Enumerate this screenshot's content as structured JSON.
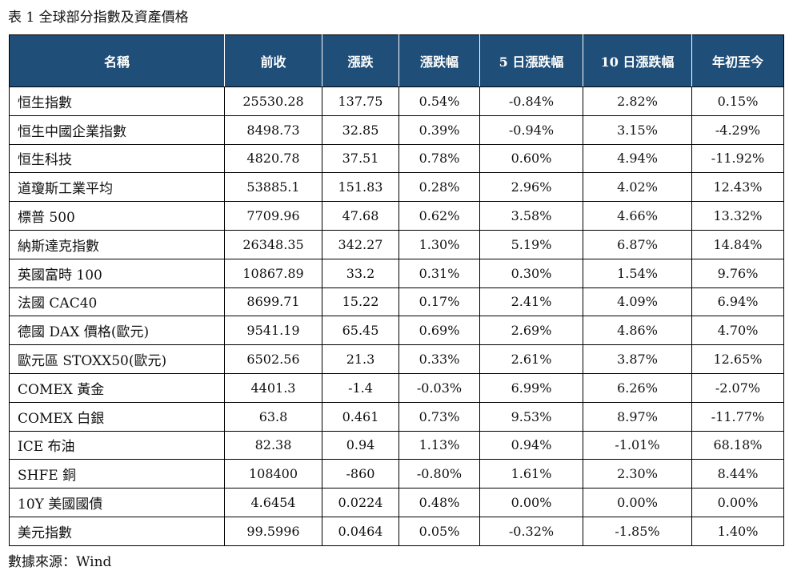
{
  "caption": "表 1 全球部分指數及資產價格",
  "table": {
    "headers": [
      "名稱",
      "前收",
      "漲跌",
      "漲跌幅",
      "5 日漲跌幅",
      "10 日漲跌幅",
      "年初至今"
    ],
    "rows": [
      [
        "恒生指數",
        "25530.28",
        "137.75",
        "0.54%",
        "-0.84%",
        "2.82%",
        "0.15%"
      ],
      [
        "恒生中國企業指數",
        "8498.73",
        "32.85",
        "0.39%",
        "-0.94%",
        "3.15%",
        "-4.29%"
      ],
      [
        "恒生科技",
        "4820.78",
        "37.51",
        "0.78%",
        "0.60%",
        "4.94%",
        "-11.92%"
      ],
      [
        "道瓊斯工業平均",
        "53885.1",
        "151.83",
        "0.28%",
        "2.96%",
        "4.02%",
        "12.43%"
      ],
      [
        "標普 500",
        "7709.96",
        "47.68",
        "0.62%",
        "3.58%",
        "4.66%",
        "13.32%"
      ],
      [
        "納斯達克指數",
        "26348.35",
        "342.27",
        "1.30%",
        "5.19%",
        "6.87%",
        "14.84%"
      ],
      [
        "英國富時 100",
        "10867.89",
        "33.2",
        "0.31%",
        "0.30%",
        "1.54%",
        "9.76%"
      ],
      [
        "法國 CAC40",
        "8699.71",
        "15.22",
        "0.17%",
        "2.41%",
        "4.09%",
        "6.94%"
      ],
      [
        "德國 DAX 價格(歐元)",
        "9541.19",
        "65.45",
        "0.69%",
        "2.69%",
        "4.86%",
        "4.70%"
      ],
      [
        "歐元區 STOXX50(歐元)",
        "6502.56",
        "21.3",
        "0.33%",
        "2.61%",
        "3.87%",
        "12.65%"
      ],
      [
        "COMEX 黃金",
        "4401.3",
        "-1.4",
        "-0.03%",
        "6.99%",
        "6.26%",
        "-2.07%"
      ],
      [
        "COMEX 白銀",
        "63.8",
        "0.461",
        "0.73%",
        "9.53%",
        "8.97%",
        "-11.77%"
      ],
      [
        "ICE 布油",
        "82.38",
        "0.94",
        "1.13%",
        "0.94%",
        "-1.01%",
        "68.18%"
      ],
      [
        "SHFE 銅",
        "108400",
        "-860",
        "-0.80%",
        "1.61%",
        "2.30%",
        "8.44%"
      ],
      [
        "10Y  美國國債",
        "4.6454",
        "0.0224",
        "0.48%",
        "0.00%",
        "0.00%",
        "0.00%"
      ],
      [
        "美元指數",
        "99.5996",
        "0.0464",
        "0.05%",
        "-0.32%",
        "-1.85%",
        "1.40%"
      ]
    ]
  },
  "source": "數據來源：Wind",
  "colors": {
    "header_bg": "#1f4e79",
    "header_text": "#ffffff",
    "border": "#000000"
  }
}
